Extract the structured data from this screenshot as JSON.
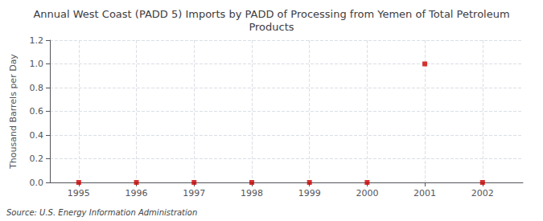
{
  "chart_data": {
    "type": "scatter",
    "title": "Annual West Coast (PADD 5) Imports by PADD of Processing from Yemen of Total Petroleum\nProducts",
    "ylabel": "Thousand Barrels per Day",
    "annotation": "Source: U.S. Energy Information Administration",
    "x": [
      1995,
      1996,
      1997,
      1998,
      1999,
      2000,
      2001,
      2002
    ],
    "values": [
      0.0,
      0.0,
      0.0,
      0.0,
      0.0,
      0.0,
      1.0,
      0.0
    ],
    "color": "#cc0000",
    "marker": "square",
    "xlim": [
      1994.5,
      2002.7
    ],
    "ylim": [
      0.0,
      1.2
    ],
    "xticks": [
      1995,
      1996,
      1997,
      1998,
      1999,
      2000,
      2001,
      2002
    ],
    "yticks": [
      {
        "value": 0.0,
        "label": "0.0"
      },
      0.2,
      0.4,
      0.6,
      0.8,
      {
        "value": 1.0,
        "label": "1.0"
      },
      1.2
    ],
    "grid": true
  }
}
